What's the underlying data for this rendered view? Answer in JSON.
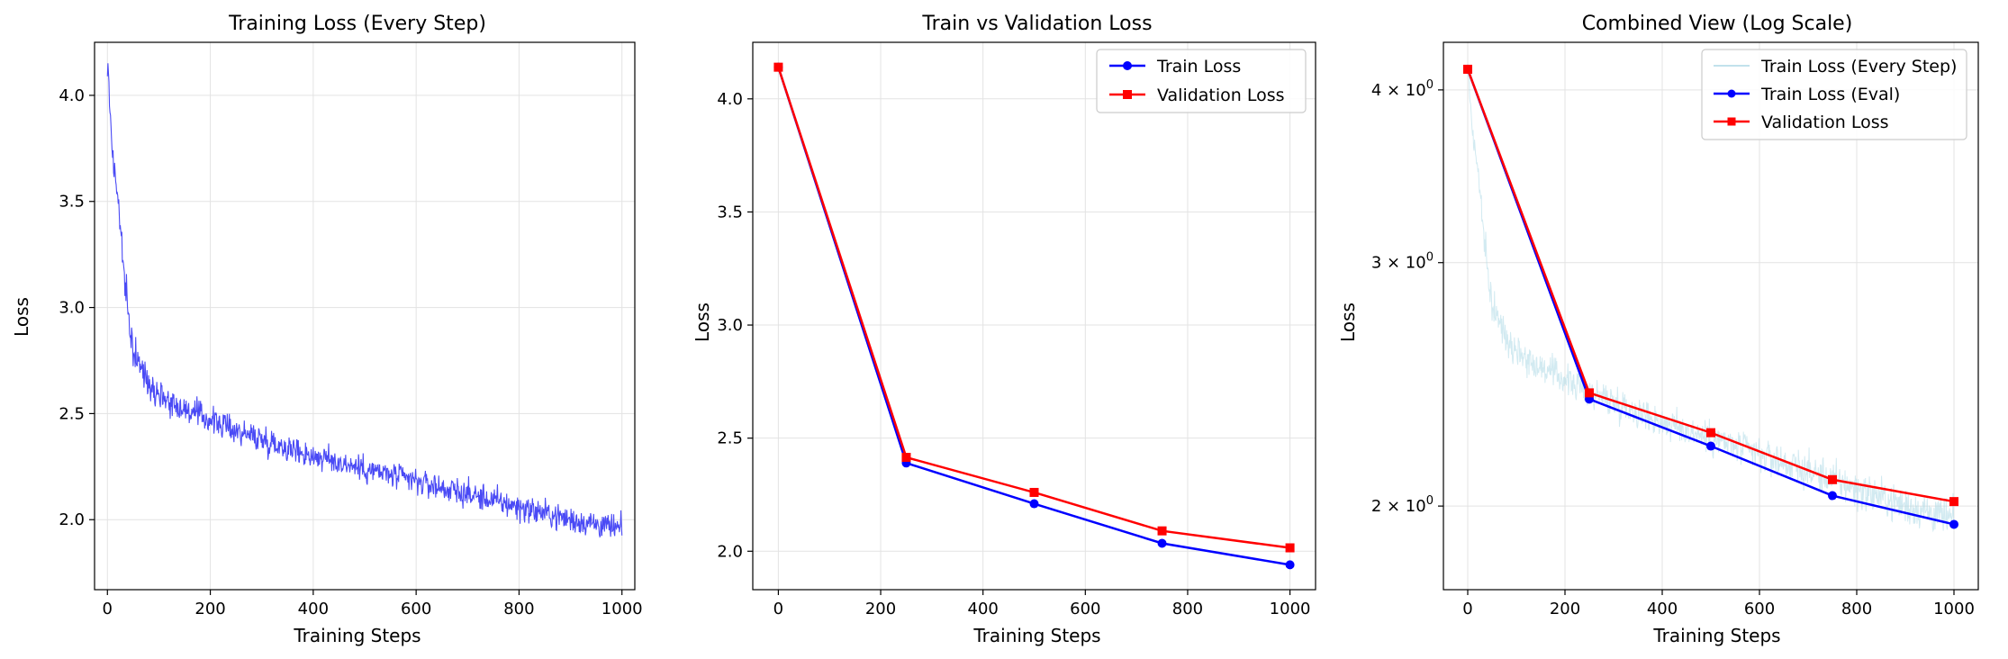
{
  "colors": {
    "step_line": "#4a4af5",
    "train": "#0000ff",
    "validation": "#ff0000",
    "step_line_light": "#add8e6"
  },
  "chart_data": [
    {
      "type": "line",
      "title": "Training Loss (Every Step)",
      "xlabel": "Training Steps",
      "ylabel": "Loss",
      "xlim": [
        -25,
        1025
      ],
      "ylim": [
        1.67,
        4.25
      ],
      "xticks": [
        0,
        200,
        400,
        600,
        800,
        1000
      ],
      "yticks": [
        2.0,
        2.5,
        3.0,
        3.5,
        4.0
      ],
      "xtick_labels": [
        "0",
        "200",
        "400",
        "600",
        "800",
        "1000"
      ],
      "ytick_labels": [
        "2.0",
        "2.5",
        "3.0",
        "3.5",
        "4.0"
      ],
      "grid": true,
      "series": [
        {
          "style": "dense-noisy",
          "x": [
            0,
            5,
            10,
            15,
            20,
            25,
            30,
            35,
            40,
            45,
            50,
            60,
            70,
            80,
            90,
            100,
            125,
            150,
            200,
            250,
            300,
            350,
            400,
            450,
            500,
            550,
            600,
            650,
            700,
            750,
            800,
            850,
            900,
            950,
            1000
          ],
          "values": [
            4.14,
            3.95,
            3.72,
            3.62,
            3.52,
            3.4,
            3.22,
            3.08,
            2.97,
            2.88,
            2.8,
            2.74,
            2.69,
            2.65,
            2.62,
            2.6,
            2.55,
            2.52,
            2.47,
            2.42,
            2.38,
            2.34,
            2.3,
            2.27,
            2.24,
            2.21,
            2.18,
            2.15,
            2.12,
            2.09,
            2.06,
            2.03,
            2.0,
            1.98,
            1.95
          ]
        }
      ]
    },
    {
      "type": "line",
      "title": "Train vs Validation Loss",
      "xlabel": "Training Steps",
      "ylabel": "Loss",
      "xlim": [
        -50,
        1050
      ],
      "ylim": [
        1.83,
        4.25
      ],
      "xticks": [
        0,
        200,
        400,
        600,
        800,
        1000
      ],
      "yticks": [
        2.0,
        2.5,
        3.0,
        3.5,
        4.0
      ],
      "xtick_labels": [
        "0",
        "200",
        "400",
        "600",
        "800",
        "1000"
      ],
      "ytick_labels": [
        "2.0",
        "2.5",
        "3.0",
        "3.5",
        "4.0"
      ],
      "grid": true,
      "legend": "top-right",
      "series": [
        {
          "name": "Train Loss",
          "marker": "circle",
          "x": [
            0,
            250,
            500,
            750,
            1000
          ],
          "values": [
            4.14,
            2.39,
            2.21,
            2.035,
            1.94
          ]
        },
        {
          "name": "Validation Loss",
          "marker": "square",
          "x": [
            0,
            250,
            500,
            750,
            1000
          ],
          "values": [
            4.14,
            2.415,
            2.26,
            2.09,
            2.015
          ]
        }
      ]
    },
    {
      "type": "line",
      "title": "Combined View (Log Scale)",
      "xlabel": "Training Steps",
      "ylabel": "Loss",
      "yscale": "log",
      "xlim": [
        -50,
        1050
      ],
      "ylim": [
        1.74,
        4.33
      ],
      "xticks": [
        0,
        200,
        400,
        600,
        800,
        1000
      ],
      "yticks": [
        2,
        3,
        4
      ],
      "xtick_labels": [
        "0",
        "200",
        "400",
        "600",
        "800",
        "1000"
      ],
      "ytick_base": [
        "2",
        "3",
        "4"
      ],
      "ytick_mult": "×",
      "ytick_exp": "10",
      "ytick_pow": "0",
      "grid": true,
      "legend": "top-right",
      "series": [
        {
          "name": "Train Loss (Every Step)",
          "style": "dense-noisy",
          "x": [
            0,
            5,
            10,
            15,
            20,
            25,
            30,
            35,
            40,
            45,
            50,
            60,
            70,
            80,
            90,
            100,
            125,
            150,
            200,
            250,
            300,
            350,
            400,
            450,
            500,
            550,
            600,
            650,
            700,
            750,
            800,
            850,
            900,
            950,
            1000
          ],
          "values": [
            4.14,
            3.95,
            3.72,
            3.62,
            3.52,
            3.4,
            3.22,
            3.08,
            2.97,
            2.88,
            2.8,
            2.74,
            2.69,
            2.65,
            2.62,
            2.6,
            2.55,
            2.52,
            2.47,
            2.42,
            2.38,
            2.34,
            2.3,
            2.27,
            2.24,
            2.21,
            2.18,
            2.15,
            2.12,
            2.09,
            2.06,
            2.03,
            2.0,
            1.98,
            1.95
          ]
        },
        {
          "name": "Train Loss (Eval)",
          "marker": "circle",
          "x": [
            0,
            250,
            500,
            750,
            1000
          ],
          "values": [
            4.14,
            2.39,
            2.21,
            2.035,
            1.94
          ]
        },
        {
          "name": "Validation Loss",
          "marker": "square",
          "x": [
            0,
            250,
            500,
            750,
            1000
          ],
          "values": [
            4.14,
            2.415,
            2.26,
            2.09,
            2.015
          ]
        }
      ]
    }
  ]
}
